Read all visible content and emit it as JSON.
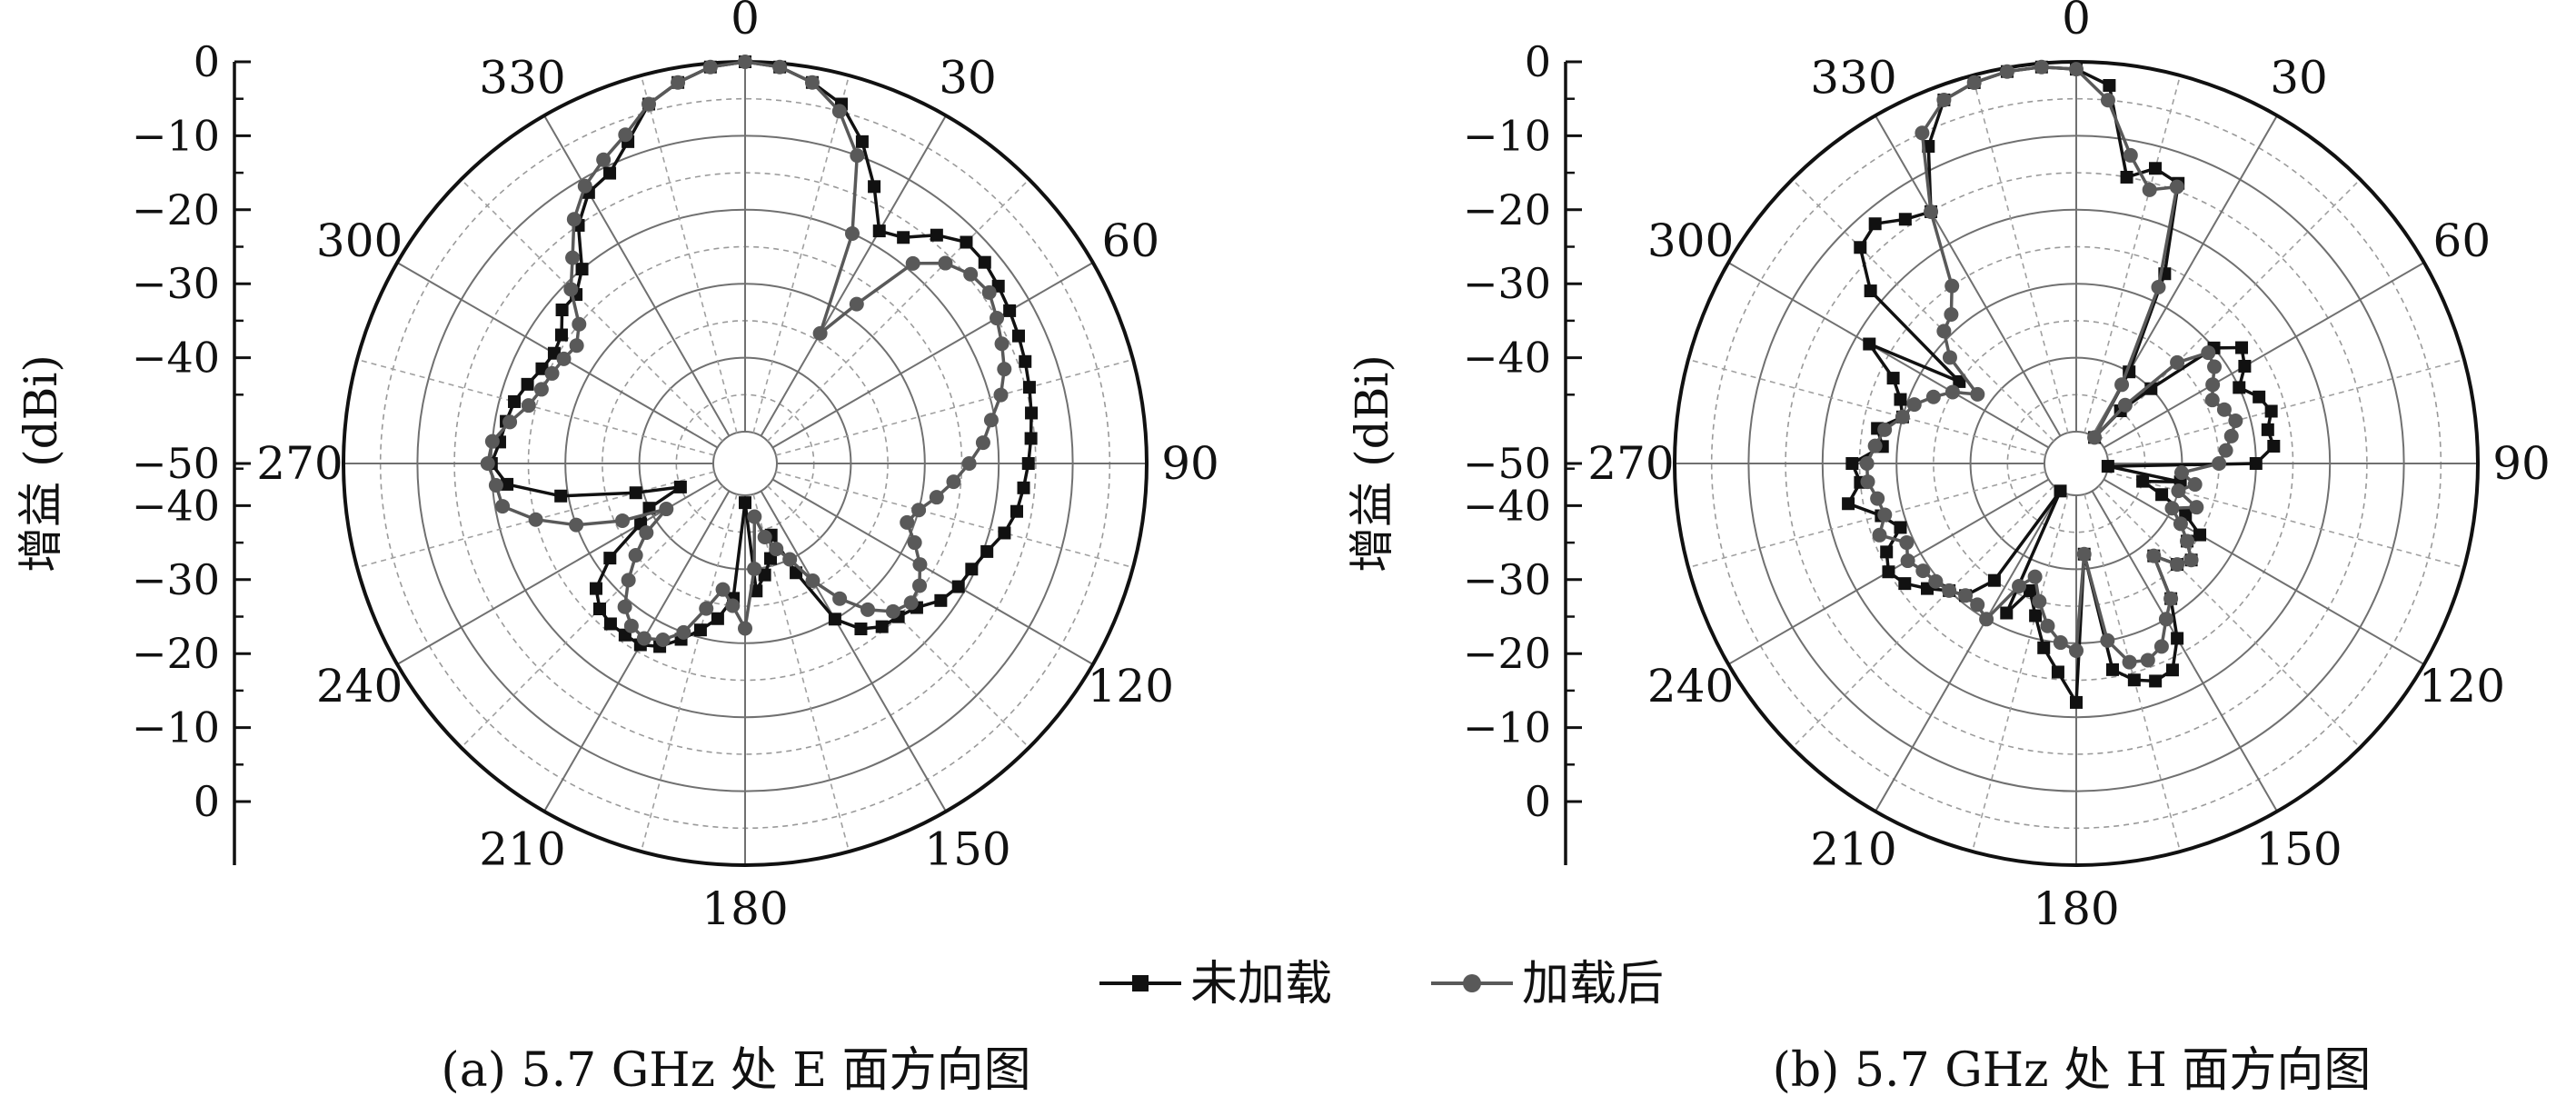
{
  "figure": {
    "ylabel": "增益 (dBi)",
    "legend": [
      {
        "label": "未加载",
        "color": "#111111",
        "marker": "square"
      },
      {
        "label": "加载后",
        "color": "#595959",
        "marker": "circle"
      }
    ]
  },
  "chart_data": [
    {
      "type": "polar",
      "title": "(a) 5.7 GHz 处 E 面方向图",
      "ylabel": "增益 (dBi)",
      "angle_ticks": [
        "0",
        "30",
        "60",
        "90",
        "120",
        "150",
        "180",
        "210",
        "240",
        "270",
        "300",
        "330"
      ],
      "radial_ticks": [
        "0",
        "−10",
        "−20",
        "−30",
        "−40",
        "−50",
        "−40",
        "−30",
        "−20",
        "−10",
        "0"
      ],
      "r_range_dB": [
        -50,
        0
      ],
      "grid": true,
      "series": [
        {
          "name": "未加载",
          "color": "#111111",
          "marker": "square",
          "angles": [
            0,
            5,
            10,
            15,
            20,
            25,
            30,
            35,
            40,
            45,
            50,
            55,
            60,
            65,
            70,
            75,
            80,
            85,
            90,
            95,
            100,
            105,
            110,
            115,
            120,
            125,
            130,
            135,
            140,
            145,
            150,
            155,
            160,
            165,
            170,
            175,
            180,
            185,
            190,
            195,
            200,
            205,
            210,
            215,
            220,
            225,
            230,
            235,
            240,
            245,
            250,
            255,
            260,
            265,
            270,
            275,
            280,
            285,
            290,
            295,
            300,
            305,
            310,
            315,
            320,
            325,
            330,
            335,
            340,
            345,
            350,
            355
          ],
          "values": [
            0,
            -0.5,
            -2,
            -4,
            -8,
            -13,
            -18,
            -17,
            -14,
            -12,
            -12,
            -12.5,
            -13,
            -13.5,
            -14,
            -14.5,
            -15,
            -15.5,
            -16,
            -16.5,
            -17,
            -18,
            -19.5,
            -20.5,
            -21,
            -22,
            -24,
            -25,
            -25.5,
            -27,
            -30,
            -38,
            -44,
            -41,
            -39,
            -37,
            -49,
            -36,
            -33,
            -31,
            -29,
            -27,
            -26,
            -26,
            -26,
            -26.5,
            -28,
            -32,
            -38,
            -40,
            -45,
            -39,
            -29,
            -22,
            -20,
            -21,
            -21.5,
            -22,
            -23,
            -24,
            -24.5,
            -24,
            -22,
            -22,
            -20,
            -15,
            -12,
            -11,
            -8,
            -4,
            -2,
            -0.5
          ]
        },
        {
          "name": "加载后",
          "color": "#595959",
          "marker": "circle",
          "angles": [
            0,
            5,
            10,
            15,
            20,
            25,
            30,
            35,
            40,
            45,
            50,
            55,
            60,
            65,
            70,
            75,
            80,
            85,
            90,
            95,
            100,
            105,
            110,
            115,
            120,
            125,
            130,
            135,
            140,
            145,
            150,
            155,
            160,
            165,
            170,
            175,
            180,
            185,
            190,
            195,
            200,
            205,
            210,
            215,
            220,
            225,
            230,
            235,
            240,
            245,
            250,
            255,
            260,
            265,
            270,
            275,
            280,
            285,
            290,
            295,
            300,
            305,
            310,
            315,
            320,
            325,
            330,
            335,
            340,
            345,
            350,
            355
          ],
          "values": [
            0,
            -0.5,
            -2,
            -5,
            -10,
            -20,
            -34,
            -28,
            -19,
            -16,
            -14.5,
            -14,
            -15,
            -16,
            -17,
            -18.5,
            -20.5,
            -22,
            -24,
            -26,
            -28,
            -30,
            -31,
            -29,
            -27,
            -25.5,
            -25,
            -26,
            -28.5,
            -32,
            -36,
            -40,
            -42,
            -44,
            -47,
            -40,
            -32,
            -35,
            -37,
            -34,
            -30,
            -28,
            -27,
            -27.5,
            -29,
            -32,
            -35,
            -38,
            -42,
            -36,
            -30,
            -25,
            -21,
            -20.5,
            -19.5,
            -20,
            -22,
            -24,
            -25,
            -25.5,
            -26,
            -26.5,
            -25,
            -21,
            -18,
            -14,
            -11,
            -9,
            -7,
            -4,
            -2,
            -0.5
          ]
        }
      ]
    },
    {
      "type": "polar",
      "title": "(b) 5.7 GHz 处 H 面方向图",
      "ylabel": "增益 (dBi)",
      "angle_ticks": [
        "0",
        "30",
        "60",
        "90",
        "120",
        "150",
        "180",
        "210",
        "240",
        "270",
        "300",
        "330"
      ],
      "radial_ticks": [
        "0",
        "−10",
        "−20",
        "−30",
        "−40",
        "−50",
        "−40",
        "−30",
        "−20",
        "−10",
        "0"
      ],
      "r_range_dB": [
        -50,
        0
      ],
      "grid": true,
      "series": [
        {
          "name": "未加载",
          "color": "#111111",
          "marker": "square",
          "angles": [
            0,
            5,
            10,
            15,
            20,
            25,
            30,
            35,
            40,
            45,
            50,
            55,
            60,
            65,
            70,
            75,
            80,
            85,
            90,
            95,
            100,
            105,
            110,
            115,
            120,
            125,
            130,
            135,
            140,
            145,
            150,
            155,
            160,
            165,
            170,
            175,
            180,
            185,
            190,
            195,
            200,
            205,
            210,
            215,
            220,
            225,
            230,
            235,
            240,
            245,
            250,
            255,
            260,
            265,
            270,
            275,
            280,
            285,
            290,
            295,
            300,
            305,
            310,
            315,
            320,
            325,
            330,
            335,
            340,
            345,
            350,
            355
          ],
          "values": [
            -1,
            -3,
            -15,
            -13,
            -14,
            -26,
            -40,
            -50,
            -45,
            -40,
            -30,
            -27,
            -28,
            -30,
            -28,
            -27,
            -28,
            -27.5,
            -30,
            -50,
            -40,
            -45,
            -42,
            -38,
            -35,
            -36,
            -34,
            -35,
            -38,
            -32,
            -27,
            -23.5,
            -23,
            -24,
            -26,
            -42,
            -22,
            -26,
            -29,
            -33,
            -36,
            -32,
            -50,
            -35,
            -31,
            -30,
            -28,
            -26,
            -25,
            -26,
            -29,
            -27,
            -23,
            -25,
            -24,
            -28,
            -27,
            -30,
            -29,
            -27,
            -22,
            -35,
            -18,
            -13,
            -12,
            -14,
            -15,
            -7,
            -2,
            -1,
            -0.5,
            -0.5
          ]
        },
        {
          "name": "加载后",
          "color": "#595959",
          "marker": "circle",
          "angles": [
            0,
            5,
            10,
            15,
            20,
            25,
            30,
            35,
            40,
            45,
            50,
            55,
            60,
            65,
            70,
            75,
            80,
            85,
            90,
            95,
            100,
            105,
            110,
            115,
            120,
            125,
            130,
            135,
            140,
            145,
            150,
            155,
            160,
            165,
            170,
            175,
            180,
            185,
            190,
            195,
            200,
            205,
            210,
            215,
            220,
            225,
            230,
            235,
            240,
            245,
            250,
            255,
            260,
            265,
            270,
            275,
            280,
            285,
            290,
            295,
            300,
            305,
            310,
            315,
            320,
            325,
            330,
            335,
            340,
            345,
            350,
            355
          ],
          "values": [
            -1,
            -5,
            -12,
            -16,
            -14.5,
            -28,
            -42,
            -50,
            -44,
            -35,
            -31,
            -31.5,
            -33,
            -34,
            -33,
            -32,
            -33,
            -34,
            -35,
            -40,
            -38,
            -40,
            -37,
            -40,
            -38,
            -36,
            -34,
            -35,
            -38,
            -32,
            -30,
            -27,
            -26,
            -26.5,
            -30,
            -42,
            -29,
            -30,
            -32,
            -35,
            -38,
            -36,
            -30,
            -31,
            -31,
            -30,
            -29.5,
            -29,
            -28,
            -29,
            -26,
            -27.5,
            -27,
            -26,
            -26,
            -27,
            -28,
            -30,
            -31,
            -33,
            -35,
            -38,
            -32,
            -29,
            -28,
            -25,
            -15,
            -5,
            -2,
            -1,
            -0.5,
            -0.5
          ]
        }
      ]
    }
  ]
}
